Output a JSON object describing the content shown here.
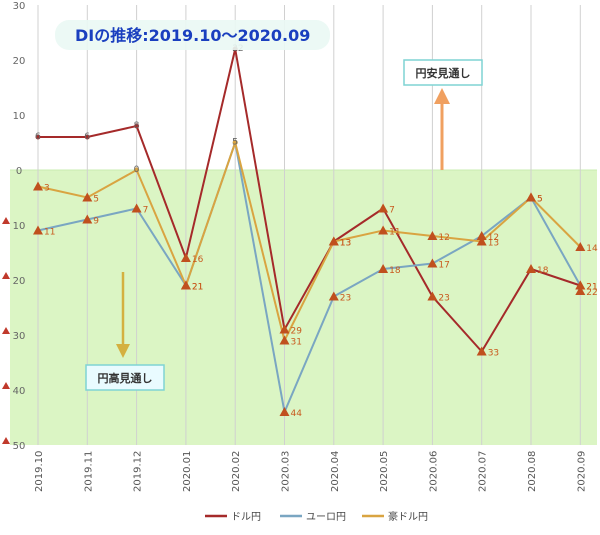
{
  "chart_data": {
    "type": "line",
    "title": "DIの推移:2019.10〜2020.09",
    "categories": [
      "2019.10",
      "2019.11",
      "2019.12",
      "2020.01",
      "2020.02",
      "2020.03",
      "2020.04",
      "2020.05",
      "2020.06",
      "2020.07",
      "2020.08",
      "2020.09"
    ],
    "ylim": [
      -50,
      30
    ],
    "yticks": [
      30,
      20,
      10,
      0,
      -10,
      -20,
      -30,
      -40,
      -50
    ],
    "ytick_labels": [
      "30",
      "20",
      "10",
      "0",
      "10",
      "20",
      "30",
      "40",
      "50"
    ],
    "grid": "vertical",
    "legend_position": "bottom",
    "series": [
      {
        "name": "ドル円",
        "color": "#a52a2a",
        "values": [
          6,
          6,
          8,
          -16,
          22,
          -29,
          -13,
          -7,
          -23,
          -33,
          -18,
          -21
        ],
        "labels": [
          "6",
          "6",
          "8",
          "16",
          "22",
          "29",
          "13",
          "7",
          "23",
          "33",
          "18",
          "21"
        ]
      },
      {
        "name": "ユーロ円",
        "color": "#7aa6c2",
        "values": [
          -11,
          -9,
          -7,
          -21,
          5,
          -44,
          -23,
          -18,
          -17,
          -12,
          -5,
          -21
        ],
        "labels": [
          "11",
          "9",
          "7",
          "21",
          "5",
          "44",
          "23",
          "18",
          "17",
          "12",
          "5",
          "21"
        ]
      },
      {
        "name": "豪ドル円",
        "color": "#d9a441",
        "values": [
          -3,
          -5,
          0,
          -21,
          5,
          -31,
          -13,
          -11,
          -12,
          -13,
          -5,
          -14
        ],
        "labels": [
          "3",
          "5",
          "0",
          "21",
          "5",
          "31",
          "13",
          "11",
          "12",
          "13",
          "5",
          "14"
        ]
      }
    ],
    "extra_markers": [
      {
        "x": "2020.09",
        "y": -22,
        "label": "22",
        "color": "#d2691e"
      }
    ],
    "bands": {
      "positive_color": "#ffffff",
      "negative_color": "#dbf5c4",
      "negative_edge_color": "#c8ecb0"
    },
    "annotations": {
      "up_label": "円安見通し",
      "down_label": "円高見通し",
      "up_arrow_color": "#f0a060",
      "down_arrow_color": "#d4b040",
      "box_border_color": "#7fd3d3"
    }
  }
}
